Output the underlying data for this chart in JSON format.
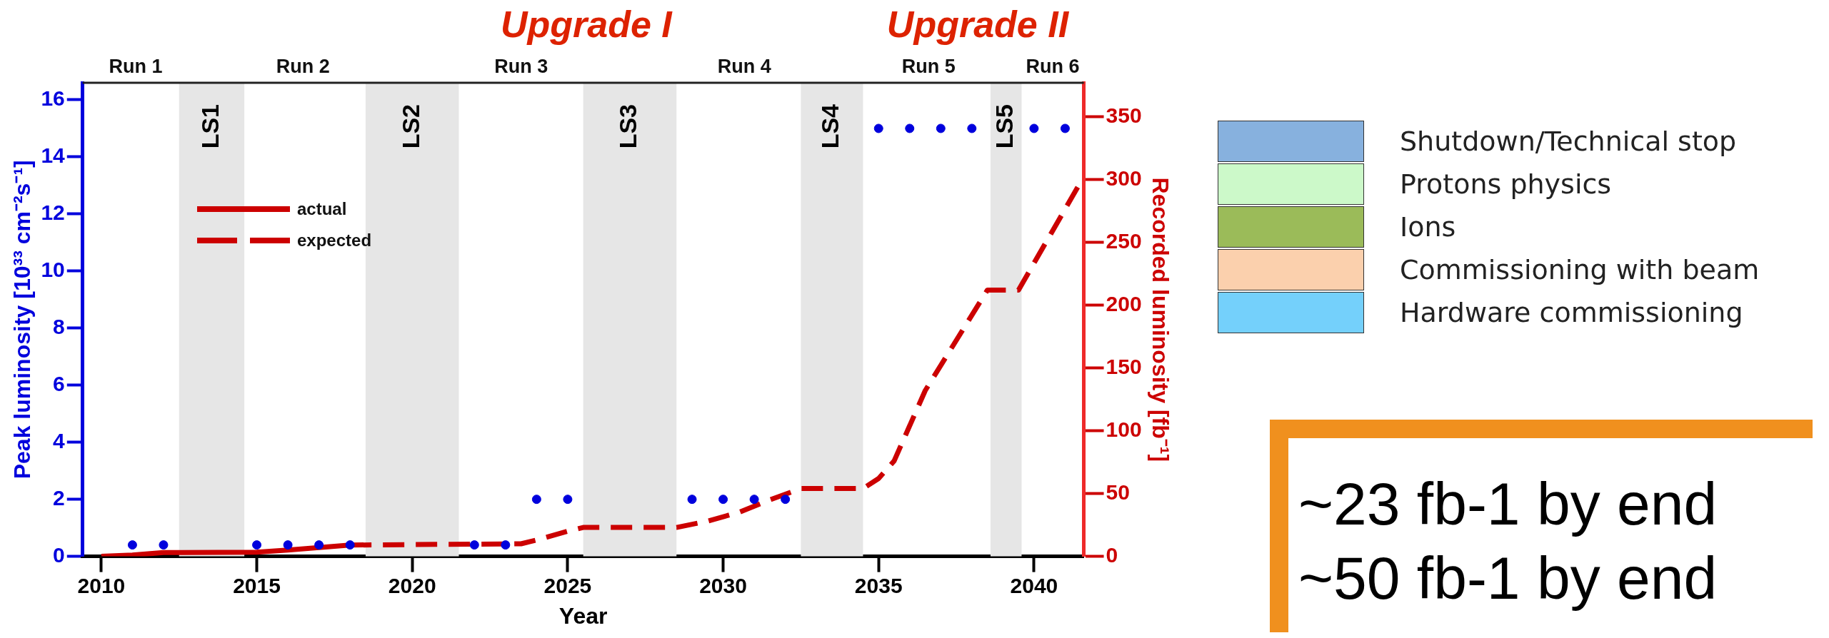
{
  "chart_data": {
    "type": "line",
    "xlabel": "Year",
    "ylabel": "Peak luminosity [10³³ cm⁻²s⁻¹]",
    "y2label": "Recorded luminosity [fb⁻¹]",
    "xlim": [
      2009.4,
      2041.6
    ],
    "xticks": [
      2010,
      2015,
      2020,
      2025,
      2030,
      2035,
      2040
    ],
    "ylim": [
      0,
      16.6
    ],
    "yticks": [
      0,
      2,
      4,
      6,
      8,
      10,
      12,
      14,
      16
    ],
    "y2lim": [
      0,
      377
    ],
    "y2ticks": [
      0,
      50,
      100,
      150,
      200,
      250,
      300,
      350
    ],
    "grid": false,
    "legend": "top left",
    "bands": [
      {
        "axis": "x",
        "from": 2012.5,
        "to": 2014.6,
        "label": "LS1",
        "color": "#e6e6e6"
      },
      {
        "axis": "x",
        "from": 2018.5,
        "to": 2021.5,
        "label": "LS2",
        "color": "#e6e6e6"
      },
      {
        "axis": "x",
        "from": 2025.5,
        "to": 2028.5,
        "label": "LS3",
        "color": "#e6e6e6"
      },
      {
        "axis": "x",
        "from": 2032.5,
        "to": 2034.5,
        "label": "LS4",
        "color": "#e6e6e6"
      },
      {
        "axis": "x",
        "from": 2038.6,
        "to": 2039.6,
        "label": "LS5",
        "color": "#e6e6e6"
      }
    ],
    "series": [
      {
        "type": "scatter",
        "color": "#0000dd",
        "marker": "circle",
        "x": [
          2011,
          2012,
          2015,
          2016,
          2017,
          2018,
          2022,
          2023,
          2024,
          2025,
          2029,
          2030,
          2031,
          2032,
          2035,
          2036,
          2037,
          2038,
          2040,
          2041
        ],
        "values": [
          0.4,
          0.4,
          0.4,
          0.4,
          0.4,
          0.4,
          0.4,
          0.4,
          2,
          2,
          2,
          2,
          2,
          2,
          15,
          15,
          15,
          15,
          15,
          15
        ]
      },
      {
        "name": "actual",
        "color": "#cc0000",
        "axis": "y2",
        "marker": "none",
        "line_style": "solid",
        "x": [
          2010,
          2011,
          2012,
          2015,
          2016,
          2017,
          2018
        ],
        "values": [
          0,
          1,
          3,
          3.3,
          5,
          7,
          9
        ]
      },
      {
        "name": "expected",
        "color": "#cc0000",
        "axis": "y2",
        "marker": "none",
        "line_style": "dashed",
        "x": [
          2018,
          2023.5,
          2024,
          2025,
          2025.5,
          2028.5,
          2029.5,
          2030.5,
          2031.5,
          2032.5,
          2034.5,
          2035,
          2035.5,
          2036.5,
          2038.5,
          2039.5,
          2041.5
        ],
        "values": [
          9,
          10,
          13,
          20,
          23,
          23,
          28,
          35,
          45,
          54,
          54,
          62,
          76,
          132,
          212,
          212,
          298
        ]
      }
    ],
    "annotations": [
      "Upgrade I",
      "Upgrade II",
      "Run 1",
      "Run 2",
      "Run 3",
      "Run 4",
      "Run 5",
      "Run 6",
      "Shutdown/Technical stop",
      "Protons physics",
      "Ions",
      "Commissioning with beam",
      "Hardware commissioning",
      "~23 fb-1 by end",
      "~50 fb-1 by end"
    ]
  }
}
